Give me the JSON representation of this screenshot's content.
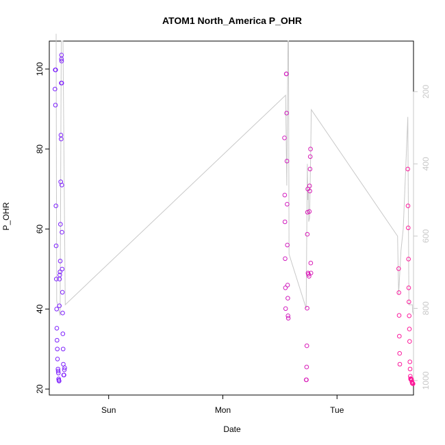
{
  "chart_data": {
    "type": "scatter",
    "title": "ATOM1 North_America P_OHR",
    "xlabel": "Date",
    "ylabel": "P_OHR",
    "x_ticks": [
      "Sun",
      "Mon",
      "Tue"
    ],
    "x_unit": "days since Saturday 00:00",
    "xlim": [
      0.48,
      3.67
    ],
    "ylim": [
      18.5,
      107
    ],
    "y_ticks": [
      20,
      40,
      60,
      80,
      100
    ],
    "y2_ticks": [
      200,
      400,
      600,
      800,
      1000
    ],
    "y2lim": [
      1040,
      60
    ],
    "y2_reversed": true,
    "grid": false,
    "colors": {
      "series_start": "#7a1fff",
      "series_end": "#ff1a9a",
      "line": "#c8c8c8",
      "axis": "#000000",
      "right_axis": "#c8c8c8"
    },
    "series": [
      {
        "name": "",
        "kind": "points",
        "points": [
          [
            0.53,
            95.0
          ],
          [
            0.532,
            99.8
          ],
          [
            0.534,
            91.0
          ],
          [
            0.536,
            99.8
          ],
          [
            0.538,
            65.8
          ],
          [
            0.54,
            55.8
          ],
          [
            0.542,
            47.5
          ],
          [
            0.544,
            40.0
          ],
          [
            0.546,
            35.2
          ],
          [
            0.548,
            32.2
          ],
          [
            0.55,
            30.0
          ],
          [
            0.552,
            27.5
          ],
          [
            0.556,
            25.0
          ],
          [
            0.558,
            24.5
          ],
          [
            0.56,
            24.0
          ],
          [
            0.562,
            22.5
          ],
          [
            0.564,
            22.2
          ],
          [
            0.566,
            22.0
          ],
          [
            0.568,
            40.8
          ],
          [
            0.57,
            47.5
          ],
          [
            0.572,
            48.5
          ],
          [
            0.574,
            49.3
          ],
          [
            0.576,
            52.0
          ],
          [
            0.578,
            61.2
          ],
          [
            0.58,
            71.8
          ],
          [
            0.582,
            83.5
          ],
          [
            0.584,
            82.5
          ],
          [
            0.585,
            96.5
          ],
          [
            0.586,
            102.5
          ],
          [
            0.587,
            103.5
          ],
          [
            0.588,
            102.0
          ],
          [
            0.589,
            96.5
          ],
          [
            0.59,
            71.0
          ],
          [
            0.591,
            59.2
          ],
          [
            0.593,
            50.0
          ],
          [
            0.595,
            44.2
          ],
          [
            0.597,
            39.0
          ],
          [
            0.599,
            33.8
          ],
          [
            0.601,
            30.0
          ],
          [
            0.603,
            26.2
          ],
          [
            0.606,
            23.5
          ],
          [
            0.609,
            23.5
          ],
          [
            0.612,
            24.8
          ],
          [
            0.615,
            25.3
          ],
          [
            2.54,
            82.8
          ],
          [
            2.542,
            68.5
          ],
          [
            2.544,
            61.8
          ],
          [
            2.546,
            52.6
          ],
          [
            2.548,
            45.3
          ],
          [
            2.55,
            40.1
          ],
          [
            2.555,
            98.8
          ],
          [
            2.557,
            98.8
          ],
          [
            2.559,
            89.0
          ],
          [
            2.561,
            77.0
          ],
          [
            2.563,
            66.2
          ],
          [
            2.565,
            56.0
          ],
          [
            2.567,
            46.0
          ],
          [
            2.569,
            42.7
          ],
          [
            2.571,
            38.3
          ],
          [
            2.573,
            37.7
          ],
          [
            2.73,
            22.3
          ],
          [
            2.732,
            22.3
          ],
          [
            2.734,
            25.5
          ],
          [
            2.736,
            30.8
          ],
          [
            2.738,
            40.2
          ],
          [
            2.74,
            58.7
          ],
          [
            2.742,
            64.2
          ],
          [
            2.744,
            70.0
          ],
          [
            2.746,
            49.0
          ],
          [
            2.75,
            48.7
          ],
          [
            2.755,
            48.2
          ],
          [
            2.758,
            64.4
          ],
          [
            2.76,
            70.8
          ],
          [
            2.762,
            69.5
          ],
          [
            2.764,
            75.0
          ],
          [
            2.766,
            78.1
          ],
          [
            2.768,
            80.0
          ],
          [
            2.77,
            51.5
          ],
          [
            2.772,
            49.0
          ],
          [
            3.54,
            50.1
          ],
          [
            3.542,
            44.1
          ],
          [
            3.544,
            38.4
          ],
          [
            3.546,
            33.2
          ],
          [
            3.548,
            28.9
          ],
          [
            3.55,
            26.2
          ],
          [
            3.62,
            75.0
          ],
          [
            3.622,
            65.8
          ],
          [
            3.624,
            60.3
          ],
          [
            3.626,
            52.5
          ],
          [
            3.628,
            45.3
          ],
          [
            3.63,
            41.8
          ],
          [
            3.632,
            38.3
          ],
          [
            3.634,
            35.0
          ],
          [
            3.636,
            31.9
          ],
          [
            3.638,
            26.8
          ],
          [
            3.64,
            25.0
          ],
          [
            3.642,
            23.2
          ],
          [
            3.644,
            22.6
          ],
          [
            3.646,
            22.4
          ],
          [
            3.648,
            22.5
          ],
          [
            3.65,
            22.5
          ],
          [
            3.652,
            22.3
          ],
          [
            3.654,
            22.2
          ],
          [
            3.656,
            21.8
          ],
          [
            3.658,
            21.6
          ],
          [
            3.66,
            21.4
          ],
          [
            3.662,
            21.4
          ],
          [
            3.664,
            21.4
          ],
          [
            3.666,
            21.3
          ]
        ]
      },
      {
        "name": "",
        "kind": "line",
        "axis": "right",
        "points": [
          [
            0.54,
            40
          ],
          [
            0.545,
            780
          ],
          [
            0.575,
            820
          ],
          [
            0.585,
            60
          ],
          [
            0.6,
            60
          ],
          [
            0.62,
            790
          ],
          [
            2.55,
            210
          ],
          [
            2.56,
            460
          ],
          [
            2.57,
            60
          ],
          [
            2.575,
            60
          ],
          [
            2.58,
            650
          ],
          [
            2.73,
            800
          ],
          [
            2.74,
            400
          ],
          [
            2.745,
            500
          ],
          [
            2.75,
            480
          ],
          [
            2.752,
            560
          ],
          [
            2.76,
            550
          ],
          [
            2.77,
            360
          ],
          [
            2.775,
            250
          ],
          [
            3.53,
            600
          ],
          [
            3.54,
            760
          ],
          [
            3.56,
            640
          ],
          [
            3.58,
            580
          ],
          [
            3.62,
            270
          ],
          [
            3.63,
            790
          ],
          [
            3.66,
            790
          ],
          [
            3.662,
            810
          ],
          [
            3.664,
            810
          ],
          [
            3.67,
            820
          ]
        ]
      }
    ]
  }
}
